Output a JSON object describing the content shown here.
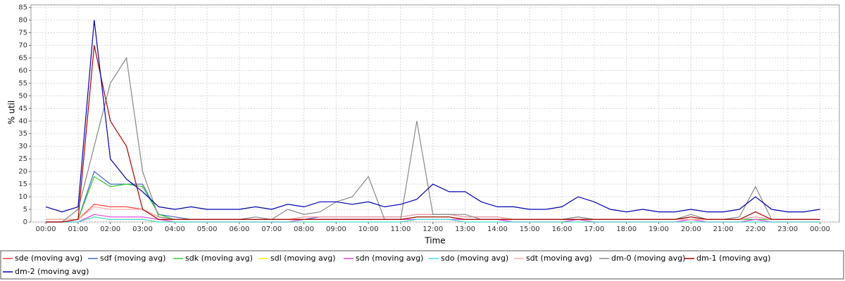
{
  "chart_data": {
    "type": "line",
    "xlabel": "Time",
    "ylabel": "% util",
    "x": [
      0,
      0.5,
      1,
      1.5,
      2,
      2.5,
      3,
      3.5,
      4,
      4.5,
      5,
      5.5,
      6,
      6.5,
      7,
      7.5,
      8,
      8.5,
      9,
      9.5,
      10,
      10.5,
      11,
      11.5,
      12,
      12.5,
      13,
      13.5,
      14,
      14.5,
      15,
      15.5,
      16,
      16.5,
      17,
      17.5,
      18,
      18.5,
      19,
      19.5,
      20,
      20.5,
      21,
      21.5,
      22,
      22.5,
      23,
      23.5,
      24
    ],
    "xlim": [
      -0.46,
      24.6
    ],
    "xticks": [
      {
        "value": 0,
        "label": "00:00"
      },
      {
        "value": 1,
        "label": "01:00"
      },
      {
        "value": 2,
        "label": "02:00"
      },
      {
        "value": 3,
        "label": "03:00"
      },
      {
        "value": 4,
        "label": "04:00"
      },
      {
        "value": 5,
        "label": "05:00"
      },
      {
        "value": 6,
        "label": "06:00"
      },
      {
        "value": 7,
        "label": "07:00"
      },
      {
        "value": 8,
        "label": "08:00"
      },
      {
        "value": 9,
        "label": "09:00"
      },
      {
        "value": 10,
        "label": "10:00"
      },
      {
        "value": 11,
        "label": "11:00"
      },
      {
        "value": 12,
        "label": "12:00"
      },
      {
        "value": 13,
        "label": "13:00"
      },
      {
        "value": 14,
        "label": "14:00"
      },
      {
        "value": 15,
        "label": "15:00"
      },
      {
        "value": 16,
        "label": "16:00"
      },
      {
        "value": 17,
        "label": "17:00"
      },
      {
        "value": 18,
        "label": "18:00"
      },
      {
        "value": 19,
        "label": "19:00"
      },
      {
        "value": 20,
        "label": "20:00"
      },
      {
        "value": 21,
        "label": "21:00"
      },
      {
        "value": 22,
        "label": "22:00"
      },
      {
        "value": 23,
        "label": "23:00"
      },
      {
        "value": 24,
        "label": "00:00"
      }
    ],
    "ylim": [
      0,
      86
    ],
    "yticks": [
      0,
      5,
      10,
      15,
      20,
      25,
      30,
      35,
      40,
      45,
      50,
      55,
      60,
      65,
      70,
      75,
      80,
      85
    ],
    "grid": true,
    "legend": "bottom",
    "series": [
      {
        "name": "sde (moving avg)",
        "color": "#ff4040",
        "values": [
          1,
          1,
          1,
          7,
          6,
          6,
          5,
          2,
          1,
          1,
          1,
          1,
          1,
          1,
          1,
          1,
          2,
          2,
          2,
          2,
          2,
          2,
          2,
          3,
          3,
          3,
          2,
          2,
          2,
          1,
          1,
          1,
          1,
          2,
          1,
          1,
          1,
          1,
          1,
          1,
          1,
          1,
          1,
          1,
          2,
          1,
          1,
          1,
          1
        ]
      },
      {
        "name": "sdf (moving avg)",
        "color": "#4466cc",
        "values": [
          1,
          1,
          1,
          20,
          15,
          15,
          15,
          3,
          2,
          1,
          1,
          1,
          1,
          1,
          1,
          1,
          1,
          2,
          2,
          2,
          2,
          2,
          2,
          3,
          3,
          3,
          2,
          2,
          2,
          1,
          1,
          1,
          1,
          2,
          1,
          1,
          1,
          1,
          1,
          1,
          2,
          1,
          1,
          1,
          2,
          1,
          1,
          1,
          1
        ]
      },
      {
        "name": "sdk (moving avg)",
        "color": "#33cc33",
        "values": [
          1,
          1,
          1,
          18,
          14,
          15,
          14,
          3,
          1,
          1,
          1,
          1,
          1,
          1,
          1,
          1,
          1,
          1,
          1,
          1,
          1,
          1,
          1,
          2,
          2,
          2,
          1,
          1,
          1,
          1,
          1,
          1,
          1,
          1,
          1,
          1,
          1,
          1,
          1,
          1,
          1,
          1,
          1,
          1,
          1,
          1,
          1,
          1,
          1
        ]
      },
      {
        "name": "sdl (moving avg)",
        "color": "#ffee00",
        "values": [
          0,
          0,
          0,
          2,
          1,
          1,
          1,
          0,
          0,
          0,
          0,
          0,
          0,
          0,
          0,
          0,
          0,
          0,
          0,
          0,
          0,
          0,
          0,
          1,
          1,
          1,
          0,
          0,
          0,
          0,
          0,
          0,
          0,
          0,
          0,
          0,
          0,
          0,
          0,
          0,
          0,
          0,
          0,
          0,
          0,
          0,
          0,
          0,
          0
        ]
      },
      {
        "name": "sdn (moving avg)",
        "color": "#dd44dd",
        "values": [
          0,
          0,
          0,
          3,
          2,
          2,
          2,
          1,
          0,
          0,
          0,
          0,
          0,
          0,
          0,
          0,
          1,
          1,
          1,
          1,
          1,
          1,
          1,
          1,
          1,
          1,
          1,
          1,
          1,
          0,
          0,
          0,
          0,
          1,
          0,
          0,
          0,
          0,
          0,
          0,
          1,
          0,
          0,
          0,
          1,
          0,
          0,
          0,
          0
        ]
      },
      {
        "name": "sdo (moving avg)",
        "color": "#44dddd",
        "values": [
          0,
          0,
          0,
          2,
          1,
          1,
          1,
          0,
          0,
          0,
          0,
          0,
          0,
          0,
          0,
          0,
          0,
          0,
          0,
          0,
          0,
          0,
          0,
          1,
          1,
          1,
          0,
          0,
          0,
          0,
          0,
          0,
          0,
          0,
          0,
          0,
          0,
          0,
          0,
          0,
          0,
          0,
          0,
          0,
          0,
          0,
          0,
          0,
          0
        ]
      },
      {
        "name": "sdt (moving avg)",
        "color": "#ffaaaa",
        "values": [
          1,
          1,
          1,
          6,
          5,
          5,
          5,
          2,
          1,
          1,
          1,
          1,
          1,
          1,
          1,
          1,
          2,
          2,
          2,
          2,
          2,
          2,
          2,
          3,
          3,
          3,
          2,
          2,
          2,
          1,
          1,
          1,
          1,
          2,
          1,
          1,
          1,
          1,
          1,
          1,
          1,
          1,
          1,
          1,
          2,
          1,
          1,
          1,
          1
        ]
      },
      {
        "name": "dm-0 (moving avg)",
        "color": "#888888",
        "values": [
          0,
          0,
          5,
          30,
          55,
          65,
          20,
          2,
          1,
          1,
          1,
          1,
          1,
          2,
          1,
          5,
          3,
          4,
          8,
          10,
          18,
          1,
          1,
          40,
          3,
          3,
          3,
          1,
          1,
          1,
          1,
          1,
          1,
          2,
          1,
          1,
          1,
          1,
          1,
          1,
          3,
          1,
          1,
          2,
          14,
          1,
          1,
          1,
          1
        ]
      },
      {
        "name": "dm-1 (moving avg)",
        "color": "#aa0000",
        "values": [
          0,
          0,
          1,
          70,
          40,
          30,
          5,
          1,
          1,
          1,
          1,
          1,
          1,
          1,
          1,
          1,
          1,
          1,
          1,
          1,
          1,
          1,
          1,
          2,
          2,
          2,
          1,
          1,
          1,
          1,
          1,
          1,
          1,
          1,
          1,
          1,
          1,
          1,
          1,
          1,
          2,
          1,
          1,
          1,
          4,
          1,
          1,
          1,
          1
        ]
      },
      {
        "name": "dm-2 (moving avg)",
        "color": "#0000aa",
        "values": [
          6,
          4,
          6,
          80,
          25,
          17,
          12,
          6,
          5,
          6,
          5,
          5,
          5,
          6,
          5,
          7,
          6,
          8,
          8,
          7,
          8,
          6,
          7,
          9,
          15,
          12,
          12,
          8,
          6,
          6,
          5,
          5,
          6,
          10,
          8,
          5,
          4,
          5,
          4,
          4,
          5,
          4,
          4,
          5,
          10,
          5,
          4,
          4,
          5
        ]
      }
    ]
  }
}
